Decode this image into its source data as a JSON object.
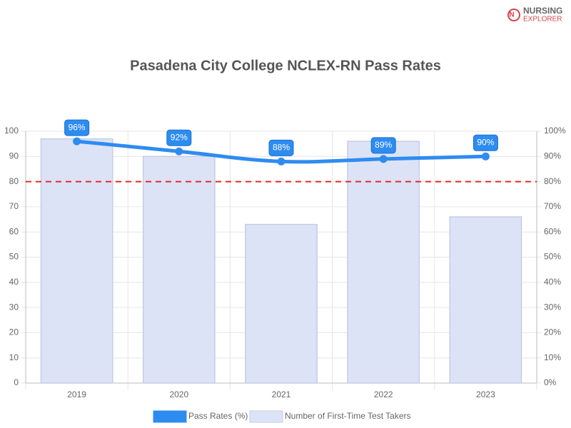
{
  "logo": {
    "line1": "NURSING",
    "line2": "EXPLORER"
  },
  "chart_data": {
    "type": "bar-line",
    "title": "Pasadena City College NCLEX-RN Pass Rates",
    "categories": [
      "2019",
      "2020",
      "2021",
      "2022",
      "2023"
    ],
    "series": [
      {
        "name": "Number of First-Time Test Takers",
        "type": "bar",
        "color": "#dde3f7",
        "border": "#c6cce3",
        "values": [
          97,
          90,
          63,
          96,
          66
        ]
      },
      {
        "name": "Pass Rates (%)",
        "type": "line",
        "axis": "y2",
        "color": "#2e8cf0",
        "values": [
          96,
          92,
          88,
          89,
          90
        ],
        "value_labels": [
          "96%",
          "92%",
          "88%",
          "89%",
          "90%"
        ]
      }
    ],
    "ylim": [
      0,
      100
    ],
    "yticks": [
      0,
      10,
      20,
      30,
      40,
      50,
      60,
      70,
      80,
      90,
      100
    ],
    "y2lim": [
      0,
      100
    ],
    "y2ticks": [
      {
        "value": 0,
        "label": "0%"
      },
      {
        "value": 10,
        "label": "10%"
      },
      {
        "value": 20,
        "label": "20%"
      },
      {
        "value": 30,
        "label": "30%"
      },
      {
        "value": 40,
        "label": "40%"
      },
      {
        "value": 50,
        "label": "50%"
      },
      {
        "value": 60,
        "label": "60%"
      },
      {
        "value": 70,
        "label": "70%"
      },
      {
        "value": 80,
        "label": "80%"
      },
      {
        "value": 90,
        "label": "90%"
      },
      {
        "value": 100,
        "label": "100%"
      }
    ],
    "reference_line": {
      "value": 80,
      "color": "#e8282b"
    },
    "grid": true
  }
}
